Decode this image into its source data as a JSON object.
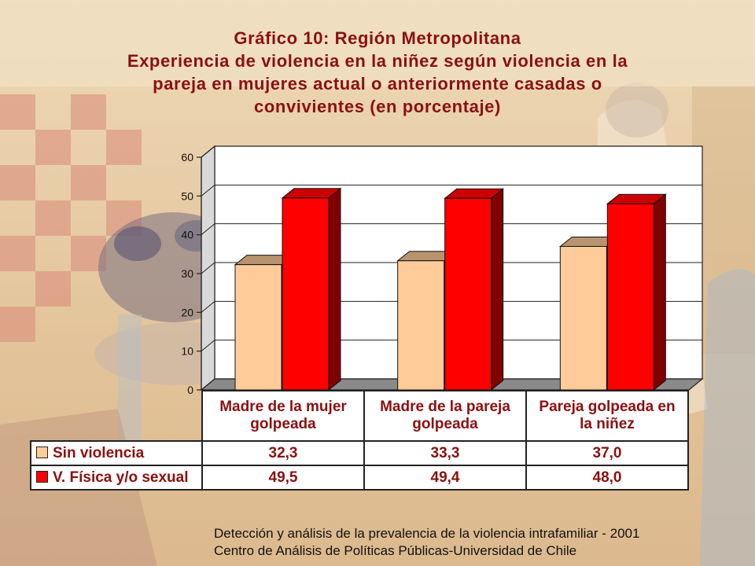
{
  "title_lines": [
    "Gráfico 10:  Región Metropolitana",
    "Experiencia de violencia en la niñez según violencia en la",
    "pareja en mujeres actual o anteriormente casadas o",
    "convivientes (en porcentaje)"
  ],
  "colors": {
    "title": "#8b1010",
    "sin_violencia": "#ffcc99",
    "v_fisica": "#ff0000"
  },
  "chart_data": {
    "type": "bar",
    "categories": [
      "Madre de la mujer golpeada",
      "Madre de la pareja golpeada",
      "Pareja golpeada en la niñez"
    ],
    "category_lines": [
      [
        "Madre de la mujer",
        "golpeada"
      ],
      [
        "Madre de la pareja",
        "golpeada"
      ],
      [
        "Pareja golpeada en",
        "la niñez"
      ]
    ],
    "series": [
      {
        "name": "Sin violencia",
        "values": [
          32.3,
          33.3,
          37.0
        ],
        "labels": [
          "32,3",
          "33,3",
          "37,0"
        ],
        "color": "#ffcc99"
      },
      {
        "name": "V. Física y/o sexual",
        "values": [
          49.5,
          49.4,
          48.0
        ],
        "labels": [
          "49,5",
          "49,4",
          "48,0"
        ],
        "color": "#ff0000"
      }
    ],
    "ylim": [
      0,
      60
    ],
    "yticks": [
      0,
      10,
      20,
      30,
      40,
      50,
      60
    ],
    "grid": true,
    "legend": "data-table",
    "three_d": true
  },
  "source_lines": [
    "Detección y análisis de la prevalencia de la violencia intrafamiliar - 2001",
    "Centro de Análisis de Políticas Públicas-Universidad de Chile"
  ]
}
